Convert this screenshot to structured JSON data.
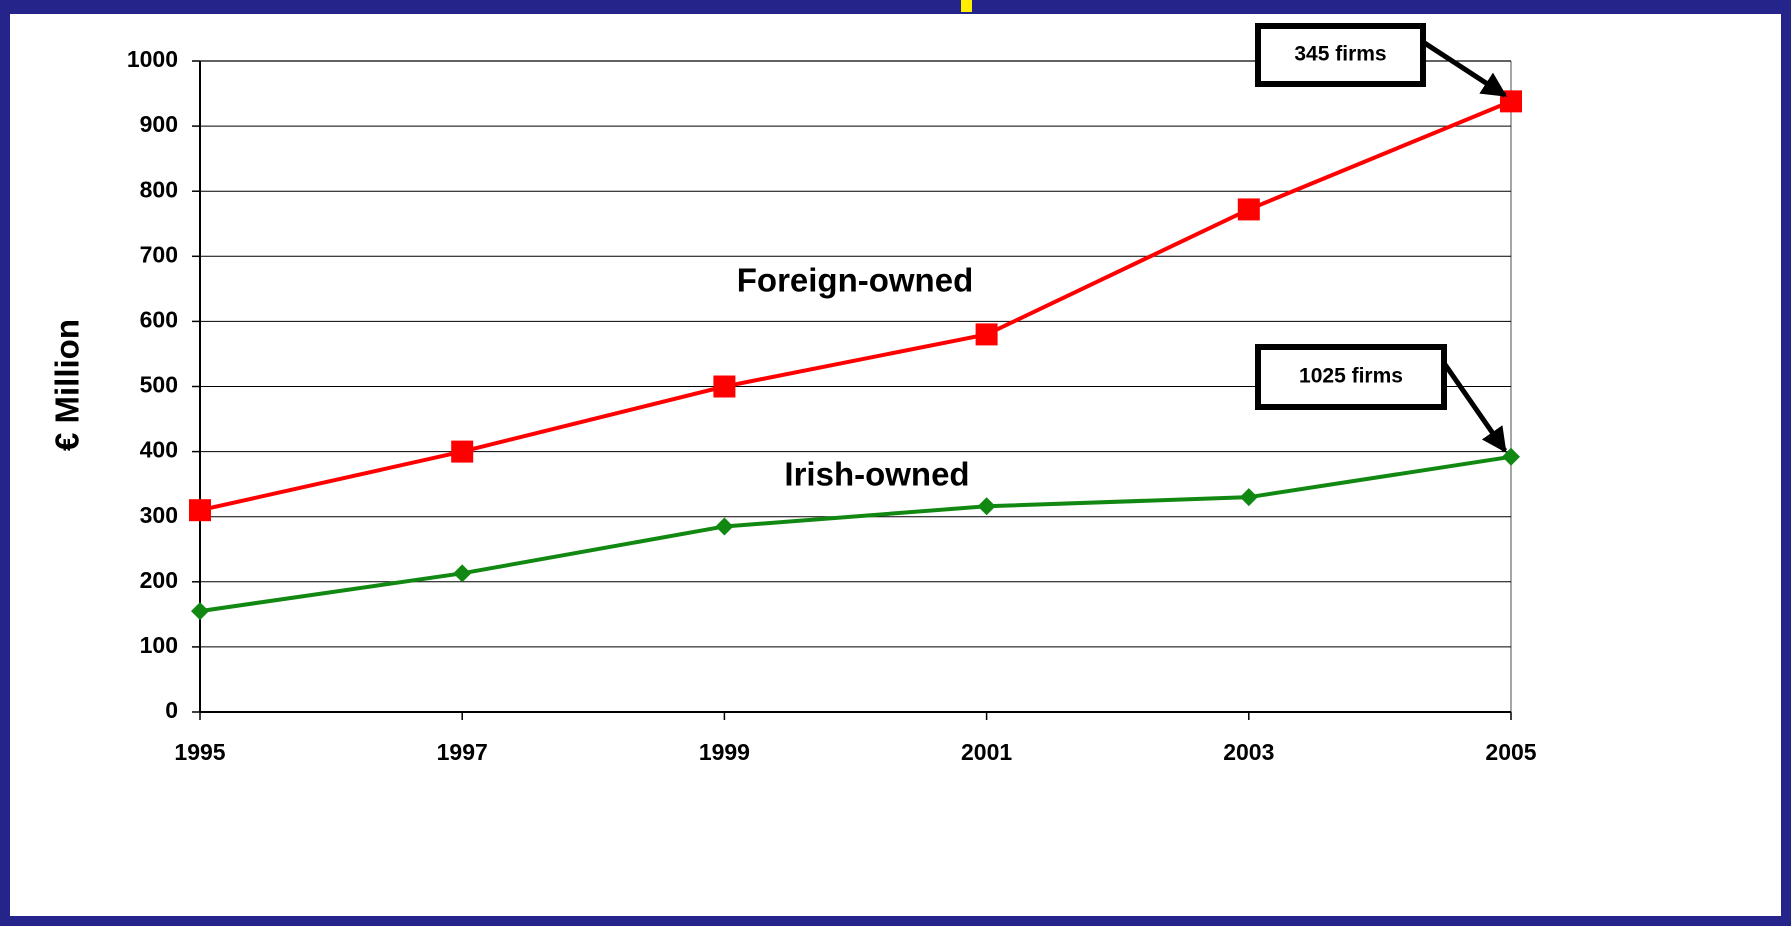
{
  "chart_data": {
    "type": "line",
    "y_label": "€ Million",
    "x": [
      1995,
      1997,
      1999,
      2001,
      2003,
      2005
    ],
    "xlim": [
      1995,
      2005
    ],
    "xticks": [
      1995,
      1997,
      1999,
      2001,
      2003,
      2005
    ],
    "ylim": [
      0,
      1000
    ],
    "yticks": [
      0,
      100,
      200,
      300,
      400,
      500,
      600,
      700,
      800,
      900,
      1000
    ],
    "grid": true,
    "series": [
      {
        "name": "Foreign-owned",
        "color": "#ff0000",
        "marker": "square",
        "values": [
          310,
          400,
          500,
          580,
          772,
          938
        ]
      },
      {
        "name": "Irish-owned",
        "color": "#118811",
        "marker": "diamond",
        "values": [
          155,
          213,
          285,
          316,
          330,
          392
        ]
      }
    ],
    "annotations": [
      {
        "text": "345 firms",
        "series": 0
      },
      {
        "text": "1025 firms",
        "series": 1
      }
    ]
  }
}
